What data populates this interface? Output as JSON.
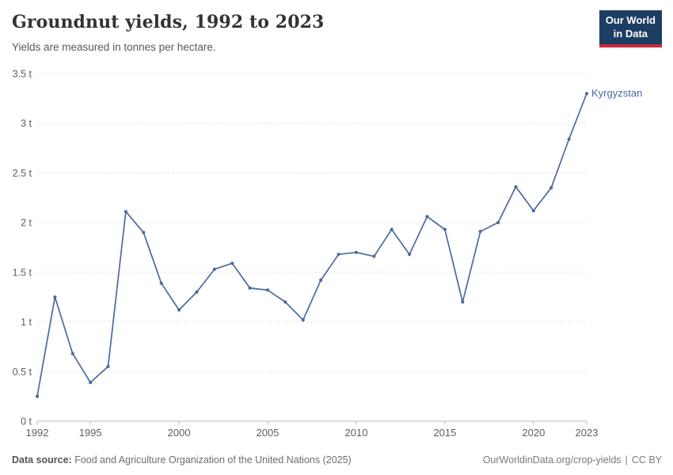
{
  "header": {
    "title": "Groundnut yields, 1992 to 2023",
    "subtitle": "Yields are measured in tonnes per hectare.",
    "logo": {
      "line1": "Our World",
      "line2": "in Data",
      "bg_color": "#1d3d63",
      "accent_color": "#cb2d3f"
    }
  },
  "chart_data": {
    "type": "line",
    "title": "Groundnut yields, 1992 to 2023",
    "ylabel": "tonnes per hectare",
    "xlabel": "",
    "unit": " t",
    "xlim": [
      1992,
      2023
    ],
    "ylim": [
      0,
      3.5
    ],
    "grid": "horizontal-dashed",
    "legend_position": "end-of-line-label",
    "x_ticks": [
      1992,
      1995,
      2000,
      2005,
      2010,
      2015,
      2020,
      2023
    ],
    "y_ticks": [
      0,
      0.5,
      1,
      1.5,
      2,
      2.5,
      3,
      3.5
    ],
    "y_tick_labels": [
      "0 t",
      "0.5 t",
      "1 t",
      "1.5 t",
      "2 t",
      "2.5 t",
      "3 t",
      "3.5 t"
    ],
    "series": [
      {
        "name": "Kyrgyzstan",
        "color": "#4c6a9f",
        "x": [
          1992,
          1993,
          1994,
          1995,
          1996,
          1997,
          1998,
          1999,
          2000,
          2001,
          2002,
          2003,
          2004,
          2005,
          2006,
          2007,
          2008,
          2009,
          2010,
          2011,
          2012,
          2013,
          2014,
          2015,
          2016,
          2017,
          2018,
          2019,
          2020,
          2021,
          2022,
          2023
        ],
        "values": [
          0.25,
          1.25,
          0.68,
          0.39,
          0.55,
          2.11,
          1.9,
          1.39,
          1.12,
          1.3,
          1.53,
          1.59,
          1.34,
          1.32,
          1.2,
          1.02,
          1.42,
          1.68,
          1.7,
          1.66,
          1.93,
          1.68,
          2.06,
          1.93,
          1.2,
          1.91,
          2.0,
          2.36,
          2.12,
          2.35,
          2.84,
          3.3
        ]
      }
    ],
    "colors": {
      "grid": "#dedede",
      "axis": "#b8b8b8",
      "tick_text": "#5e5e5e"
    }
  },
  "footer": {
    "source_label": "Data source:",
    "source_text": " Food and Agriculture Organization of the United Nations (2025)",
    "link": "OurWorldinData.org/crop-yields",
    "separator": "|",
    "license": "CC BY"
  }
}
